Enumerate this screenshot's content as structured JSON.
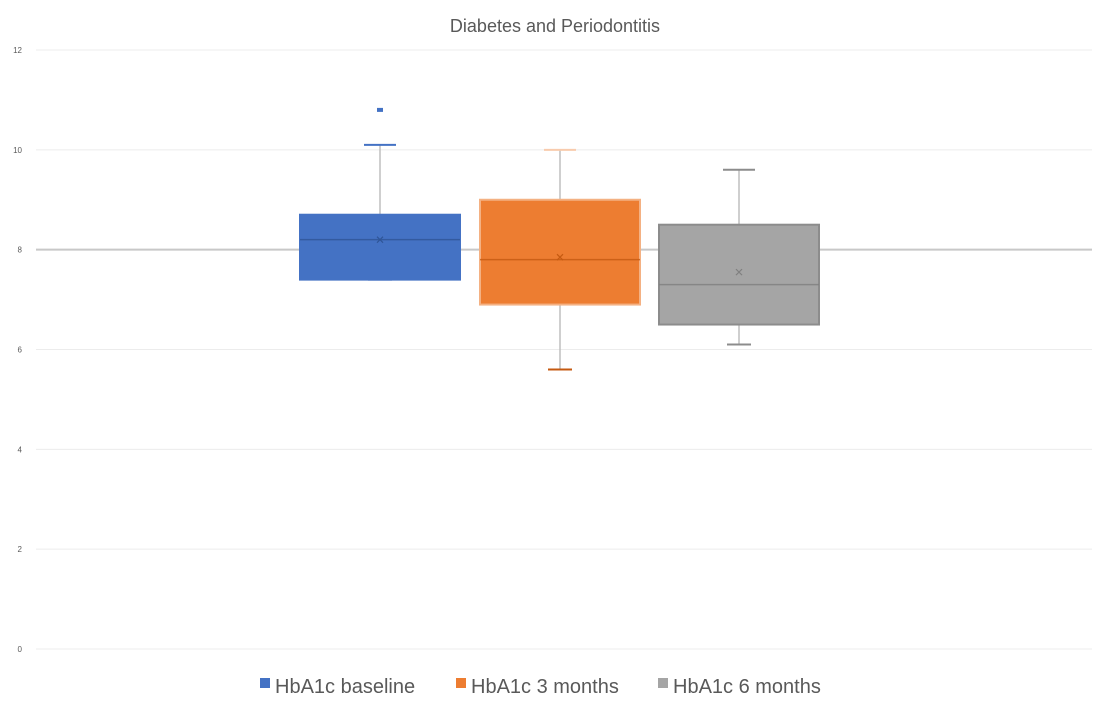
{
  "chart_data": {
    "type": "box",
    "title": "Diabetes and Periodontitis",
    "ylim": [
      0,
      12
    ],
    "yticks": [
      "0",
      "2",
      "4",
      "6",
      "8",
      "10",
      "12"
    ],
    "grid": true,
    "legend_position": "bottom",
    "series": [
      {
        "name": "HbA1c baseline",
        "color": "#4472C4",
        "whisker_low": 7.4,
        "q1": 7.4,
        "median": 8.2,
        "q3": 8.7,
        "whisker_high": 10.1,
        "mean": 8.2,
        "outliers": [
          10.8
        ]
      },
      {
        "name": "HbA1c 3 months",
        "color": "#ED7D31",
        "whisker_low": 5.6,
        "q1": 6.9,
        "median": 7.8,
        "q3": 9.0,
        "whisker_high": 10.0,
        "mean": 7.85,
        "outliers": []
      },
      {
        "name": "HbA1c 6 months",
        "color": "#A5A5A5",
        "whisker_low": 6.1,
        "q1": 6.5,
        "median": 7.3,
        "q3": 8.5,
        "whisker_high": 9.6,
        "mean": 7.55,
        "outliers": []
      }
    ]
  }
}
